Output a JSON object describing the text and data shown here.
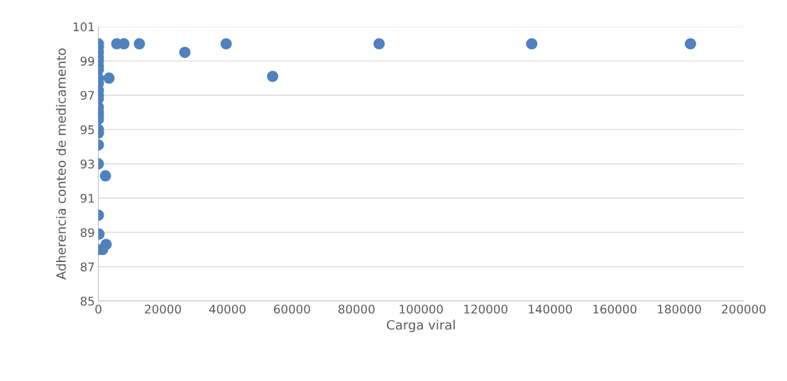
{
  "chart_data": {
    "type": "scatter",
    "xlabel": "Carga viral",
    "ylabel": "Adherencia conteo de medicamento",
    "xlim": [
      0,
      200000
    ],
    "xticks": [
      0,
      20000,
      40000,
      60000,
      80000,
      100000,
      120000,
      140000,
      160000,
      180000,
      200000
    ],
    "ylim": [
      85,
      101
    ],
    "yticks": [
      85,
      87,
      89,
      91,
      93,
      95,
      97,
      99,
      101
    ],
    "grid": "y",
    "marker": "circle",
    "series": [
      {
        "color": "#4f81bd",
        "x": [
          183500,
          134300,
          87000,
          54000,
          39600,
          26800,
          12700,
          7900,
          5700,
          3300,
          2200,
          2400,
          1300,
          200,
          0,
          0,
          0,
          0,
          0,
          0,
          0,
          0,
          0,
          0,
          0,
          0,
          0,
          0,
          0,
          0,
          0,
          0,
          0,
          0,
          0,
          0
        ],
        "values": [
          100,
          100,
          100,
          98.1,
          100,
          99.5,
          100,
          100,
          100,
          98.0,
          92.3,
          88.3,
          88.0,
          88.9,
          100,
          99.8,
          99.5,
          99.2,
          99.0,
          98.7,
          98.5,
          98.0,
          97.7,
          97.3,
          97.0,
          96.8,
          96.3,
          96.0,
          95.8,
          95.6,
          95.0,
          94.8,
          94.1,
          93.0,
          90.0,
          88.0
        ]
      }
    ]
  }
}
